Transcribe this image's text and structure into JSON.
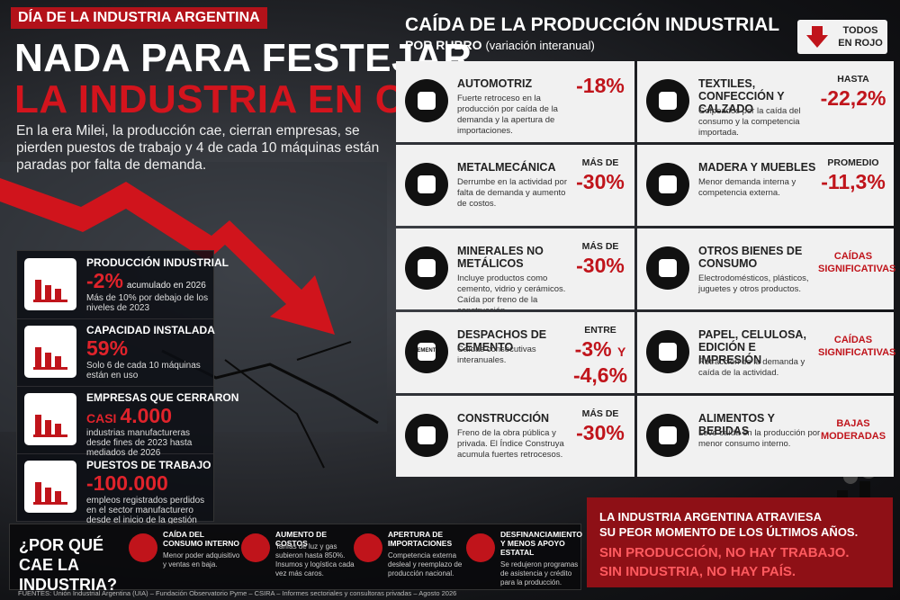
{
  "header": {
    "tag": "DÍA DE LA INDUSTRIA ARGENTINA",
    "title_1": "NADA PARA FESTEJAR",
    "title_2": "LA INDUSTRIA EN CAÍDA",
    "intro": "En la era Milei, la producción cae, cierran empresas, se pierden puestos de trabajo y 4 de cada 10 máquinas están paradas por falta de demanda."
  },
  "stats": [
    {
      "title": "PRODUCCIÓN INDUSTRIAL",
      "value": "-2%",
      "note": "acumulado en 2026",
      "description": "Más de 10% por debajo de los niveles de 2023"
    },
    {
      "title": "CAPACIDAD INSTALADA",
      "value": "59%",
      "description": "Solo 6 de cada 10 máquinas están en uso"
    },
    {
      "title": "EMPRESAS QUE CERRARON",
      "prefix": "CASI",
      "value": "4.000",
      "description": "industrias manufactureras desde fines de 2023 hasta mediados de 2026"
    },
    {
      "title": "PUESTOS DE TRABAJO",
      "value": "-100.000",
      "description": "empleos registrados perdidos en el sector manufacturero desde el inicio de la gestión"
    }
  ],
  "panel": {
    "title": "CAÍDA DE LA PRODUCCIÓN INDUSTRIAL",
    "subtitle": "POR RUBRO",
    "subtitle_note": "(variación interanual)",
    "badge": "TODOS EN ROJO"
  },
  "sectors": [
    {
      "name": "AUTOMOTRIZ",
      "description": "Fuerte retroceso en la producción por caída de la demanda y la apertura de importaciones.",
      "value": "-18%"
    },
    {
      "name": "METALMECÁNICA",
      "description": "Derrumbe en la actividad por falta de demanda y aumento de costos.",
      "prefix": "MÁS DE",
      "value": "-30%"
    },
    {
      "name": "MINERALES NO METÁLICOS",
      "description": "Incluye productos como cemento, vidrio y cerámicos. Caída por freno de la construcción.",
      "prefix": "MÁS DE",
      "value": "-30%"
    },
    {
      "name": "DESPACHOS DE CEMENTO",
      "icon_label": "CEMENTO",
      "description": "Caídas consecutivas interanuales.",
      "prefix": "ENTRE",
      "value": "-3%",
      "value_join": "Y",
      "value_2": "-4,6%"
    },
    {
      "name": "CONSTRUCCIÓN",
      "description": "Freno de la obra pública y privada. El Índice Construya acumula fuertes retrocesos.",
      "prefix": "MÁS DE",
      "value": "-30%"
    },
    {
      "name": "TEXTILES, CONFECCIÓN Y CALZADO",
      "description": "Golpeados por la caída del consumo y la competencia importada.",
      "prefix": "HASTA",
      "value": "-22,2%"
    },
    {
      "name": "MADERA Y MUEBLES",
      "description": "Menor demanda interna y competencia externa.",
      "prefix": "PROMEDIO",
      "value": "-11,3%"
    },
    {
      "name": "OTROS BIENES DE CONSUMO",
      "description": "Electrodomésticos, plásticos, juguetes y otros productos.",
      "verdict": "CAÍDAS SIGNIFICATIVAS"
    },
    {
      "name": "PAPEL, CELULOSA, EDICIÓN E IMPRESIÓN",
      "description": "Retracción de la demanda y caída de la actividad.",
      "verdict": "CAÍDAS SIGNIFICATIVAS"
    },
    {
      "name": "ALIMENTOS Y BEBIDAS",
      "description": "Leve caída en la producción por menor consumo interno.",
      "verdict": "BAJAS MODERADAS"
    }
  ],
  "why": {
    "heading": "¿POR QUÉ CAE LA INDUSTRIA?",
    "items": [
      {
        "title": "CAÍDA DEL CONSUMO INTERNO",
        "text": "Menor poder adquisitivo y ventas en baja."
      },
      {
        "title": "AUMENTO DE COSTOS",
        "text": "Tarifas de luz y gas subieron hasta 850%. Insumos y logística cada vez más caros."
      },
      {
        "title": "APERTURA DE IMPORTACIONES",
        "text": "Competencia externa desleal y reemplazo de producción nacional."
      },
      {
        "title": "DESFINANCIAMIENTO Y MENOS APOYO ESTATAL",
        "text": "Se redujeron programas de asistencia y crédito para la producción."
      }
    ]
  },
  "callout": {
    "line_1": "LA INDUSTRIA ARGENTINA ATRAVIESA",
    "line_2": "SU PEOR MOMENTO DE LOS ÚLTIMOS AÑOS.",
    "line_3": "SIN PRODUCCIÓN, NO HAY TRABAJO.",
    "line_4": "SIN INDUSTRIA, NO HAY PAÍS."
  },
  "footer": {
    "sources": "FUENTES: Unión Industrial Argentina (UIA) – Fundación Observatorio Pyme – CSIRA – Informes sectoriales y consultoras privadas – Agosto 2026"
  }
}
